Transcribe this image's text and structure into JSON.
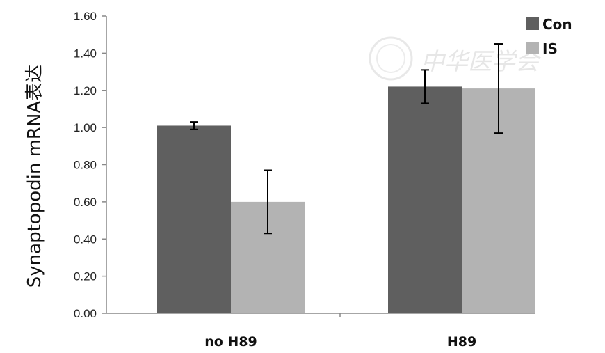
{
  "chart_data": {
    "type": "bar",
    "title": "",
    "xlabel": "",
    "ylabel": "Synaptopodin mRNA表达",
    "ylim": [
      0,
      1.6
    ],
    "yticks": [
      "0.00",
      "0.20",
      "0.40",
      "0.60",
      "0.80",
      "1.00",
      "1.20",
      "1.40",
      "1.60"
    ],
    "categories": [
      "no  H89",
      "H89"
    ],
    "series": [
      {
        "name": "Con",
        "color": "#5f5f5f",
        "values": [
          1.01,
          1.22
        ],
        "err_low": [
          0.99,
          1.13
        ],
        "err_high": [
          1.03,
          1.31
        ]
      },
      {
        "name": "IS",
        "color": "#b3b3b3",
        "values": [
          0.6,
          1.21
        ],
        "err_low": [
          0.43,
          0.97
        ],
        "err_high": [
          0.77,
          1.45
        ]
      }
    ],
    "legend_position": "top-right",
    "grid": false
  },
  "watermark": "中华医学会"
}
